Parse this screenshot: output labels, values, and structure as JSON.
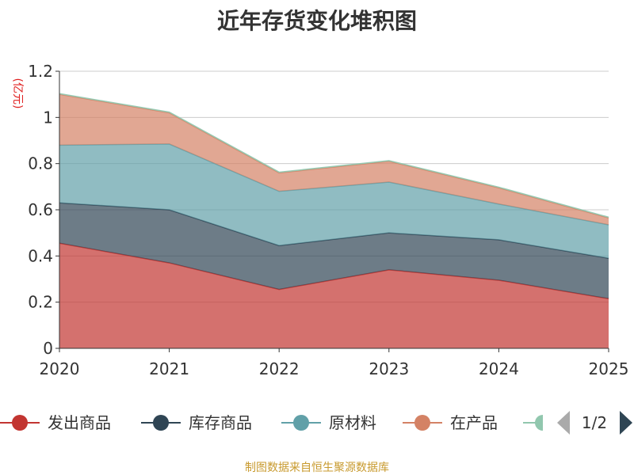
{
  "chart_data": {
    "type": "area",
    "stacked": true,
    "title": "近年存货变化堆积图",
    "ylabel": "(亿元)",
    "xlabel": "",
    "x": [
      "2020",
      "2021",
      "2022",
      "2023",
      "2024",
      "2025"
    ],
    "ylim": [
      0,
      1.2
    ],
    "yticks": [
      "0",
      "0.2",
      "0.4",
      "0.6",
      "0.8",
      "1",
      "1.2"
    ],
    "grid": true,
    "legend_position": "bottom",
    "series": [
      {
        "name": "发出商品",
        "color": "#c23531",
        "values": [
          0.455,
          0.37,
          0.255,
          0.34,
          0.295,
          0.215
        ]
      },
      {
        "name": "库存商品",
        "color": "#2f4554",
        "values": [
          0.175,
          0.23,
          0.19,
          0.16,
          0.175,
          0.175
        ]
      },
      {
        "name": "原材料",
        "color": "#61a0a8",
        "values": [
          0.25,
          0.285,
          0.235,
          0.22,
          0.155,
          0.145
        ]
      },
      {
        "name": "在产品",
        "color": "#d48265",
        "values": [
          0.22,
          0.135,
          0.08,
          0.09,
          0.07,
          0.03
        ]
      },
      {
        "name": "",
        "color": "#91c7ae",
        "values": [
          0.003,
          0.003,
          0.003,
          0.003,
          0.003,
          0.003
        ]
      }
    ],
    "legend_pager": "1/2"
  },
  "source_text": "制图数据来自恒生聚源数据库"
}
